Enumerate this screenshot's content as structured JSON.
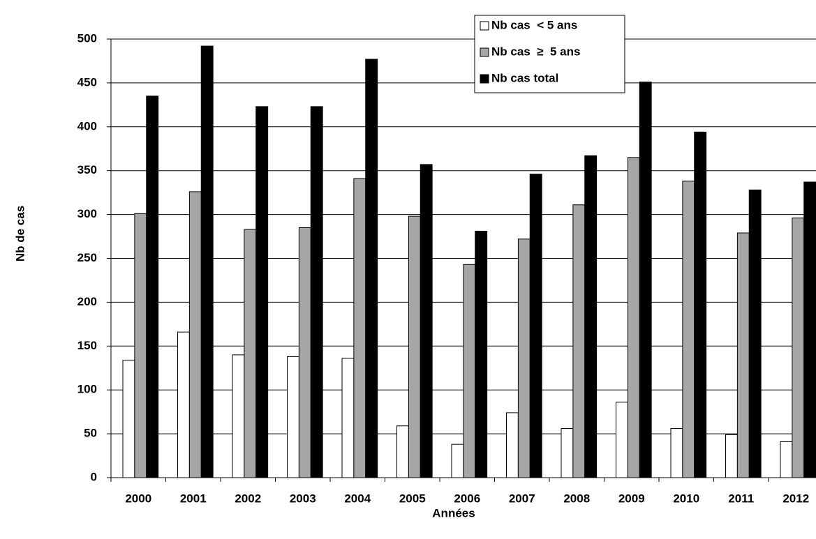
{
  "chart_data": {
    "type": "bar",
    "x_label": "Années",
    "y_label": "Nb de cas",
    "categories": [
      "2000",
      "2001",
      "2002",
      "2003",
      "2004",
      "2005",
      "2006",
      "2007",
      "2008",
      "2009",
      "2010",
      "2011",
      "2012"
    ],
    "series": [
      {
        "name": "Nb cas  < 5 ans",
        "color": "#ffffff",
        "values": [
          134,
          166,
          140,
          138,
          136,
          59,
          38,
          74,
          56,
          86,
          56,
          49,
          41
        ]
      },
      {
        "name": "Nb cas  ≥  5 ans",
        "color": "#a6a6a6",
        "values": [
          301,
          326,
          283,
          285,
          341,
          298,
          243,
          272,
          311,
          365,
          338,
          279,
          296
        ]
      },
      {
        "name": "Nb cas total",
        "color": "#000000",
        "values": [
          435,
          492,
          423,
          423,
          477,
          357,
          281,
          346,
          367,
          451,
          394,
          328,
          337
        ]
      }
    ],
    "ylim": [
      0,
      500
    ],
    "yticks": [
      0,
      50,
      100,
      150,
      200,
      250,
      300,
      350,
      400,
      450,
      500
    ],
    "grid": true,
    "legend": "top"
  }
}
